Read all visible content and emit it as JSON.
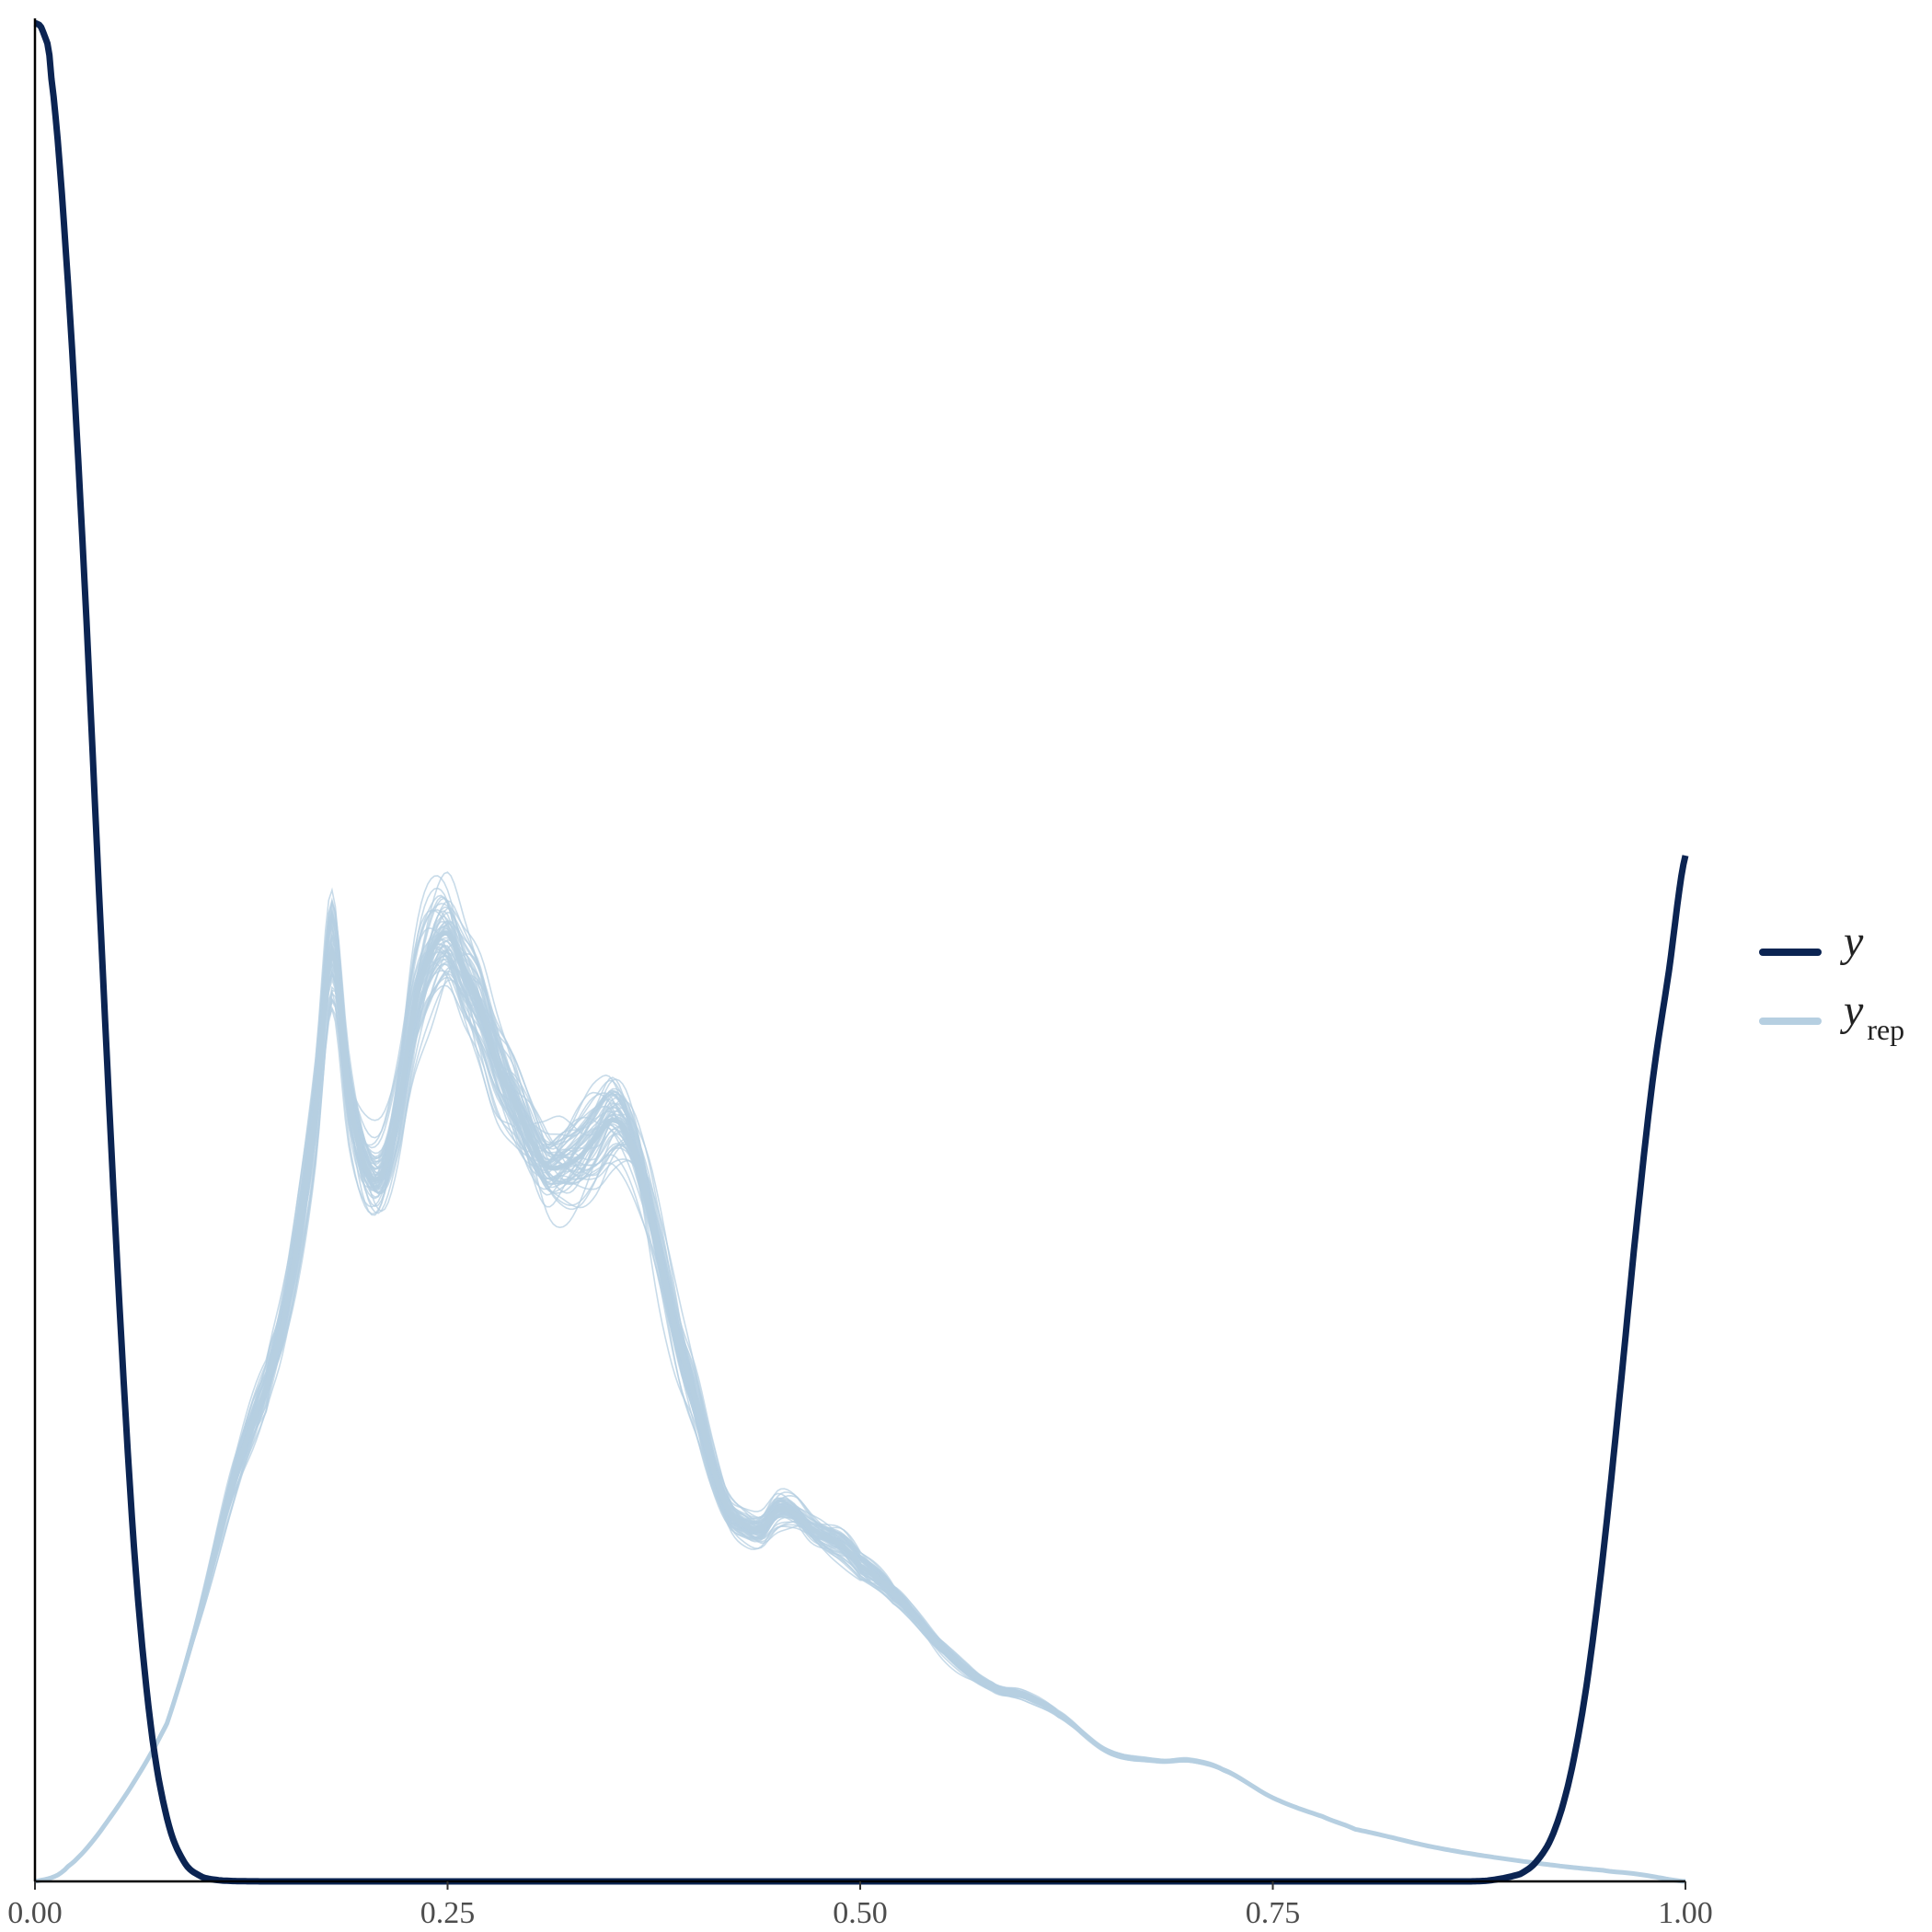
{
  "chart_data": {
    "type": "line",
    "title": "",
    "xlabel": "",
    "ylabel": "",
    "xlim": [
      0,
      1
    ],
    "ylim": [
      0,
      1
    ],
    "y_axis_ticks_shown": false,
    "grid": false,
    "x_ticks": [
      "0.00",
      "0.25",
      "0.50",
      "0.75",
      "1.00"
    ],
    "x_tick_values": [
      0,
      0.25,
      0.5,
      0.75,
      1
    ],
    "legend_placement": "right",
    "legend": [
      {
        "label": "y",
        "subscript": "",
        "color": "#0b2452"
      },
      {
        "label": "y",
        "subscript": "rep",
        "color": "#b6cfe1"
      }
    ],
    "series": [
      {
        "name": "y",
        "color": "#0b2452",
        "x": [
          0,
          0.005,
          0.01,
          0.02,
          0.03,
          0.04,
          0.05,
          0.06,
          0.07,
          0.08,
          0.09,
          0.1,
          0.11,
          0.12,
          0.14,
          0.2,
          0.3,
          0.5,
          0.7,
          0.85,
          0.88,
          0.9,
          0.91,
          0.92,
          0.93,
          0.94,
          0.95,
          0.96,
          0.97,
          0.98,
          0.99,
          1.0
        ],
        "y": [
          1.0,
          0.995,
          0.97,
          0.86,
          0.7,
          0.51,
          0.33,
          0.18,
          0.085,
          0.034,
          0.011,
          0.003,
          0.0008,
          0.0002,
          0,
          0,
          0,
          0,
          0,
          0,
          0.0004,
          0.004,
          0.011,
          0.026,
          0.056,
          0.105,
          0.175,
          0.26,
          0.35,
          0.43,
          0.49,
          0.552
        ]
      },
      {
        "name": "y_rep (mean of draws)",
        "color": "#b6cfe1",
        "x": [
          0,
          0.02,
          0.05,
          0.08,
          0.1,
          0.12,
          0.14,
          0.15,
          0.16,
          0.17,
          0.18,
          0.19,
          0.2,
          0.21,
          0.22,
          0.23,
          0.24,
          0.25,
          0.26,
          0.27,
          0.28,
          0.29,
          0.3,
          0.31,
          0.32,
          0.33,
          0.34,
          0.35,
          0.36,
          0.37,
          0.38,
          0.39,
          0.4,
          0.41,
          0.42,
          0.43,
          0.44,
          0.45,
          0.46,
          0.47,
          0.48,
          0.49,
          0.5,
          0.52,
          0.55,
          0.58,
          0.6,
          0.62,
          0.65,
          0.68,
          0.7,
          0.72,
          0.75,
          0.78,
          0.8,
          0.85,
          0.9,
          0.95,
          0.97,
          1.0
        ],
        "y": [
          0,
          0.008,
          0.04,
          0.085,
          0.145,
          0.215,
          0.265,
          0.3,
          0.35,
          0.415,
          0.5,
          0.425,
          0.385,
          0.38,
          0.415,
          0.47,
          0.5,
          0.51,
          0.49,
          0.47,
          0.44,
          0.42,
          0.4,
          0.385,
          0.385,
          0.39,
          0.4,
          0.41,
          0.4,
          0.37,
          0.33,
          0.29,
          0.26,
          0.225,
          0.2,
          0.192,
          0.19,
          0.2,
          0.198,
          0.19,
          0.185,
          0.18,
          0.17,
          0.155,
          0.125,
          0.105,
          0.1,
          0.09,
          0.07,
          0.065,
          0.065,
          0.06,
          0.045,
          0.035,
          0.028,
          0.018,
          0.011,
          0.006,
          0.004,
          0
        ]
      }
    ],
    "replicate_draws": 60
  }
}
